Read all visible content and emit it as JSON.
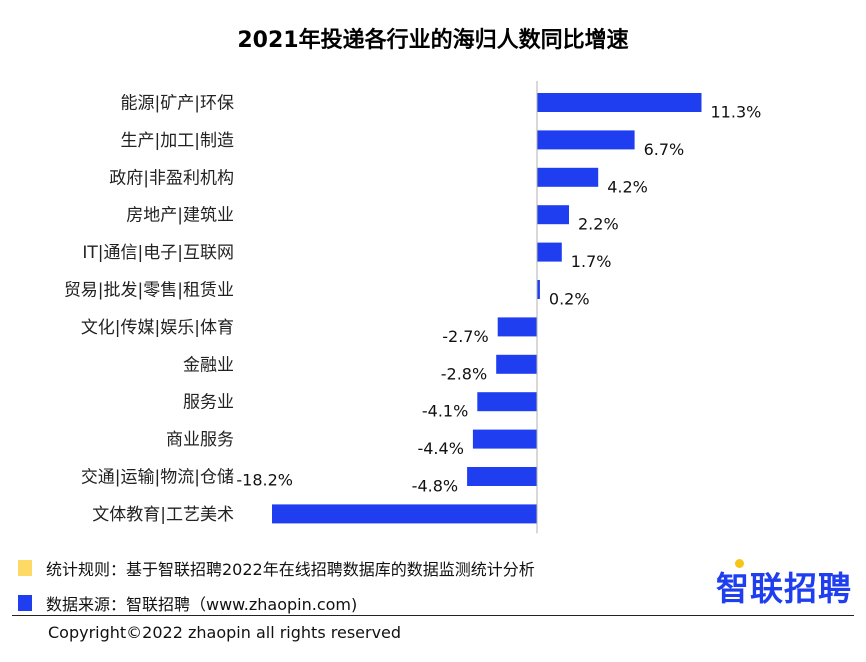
{
  "header": {
    "title": "2021年投递各行业的海归人数同比增速"
  },
  "chart_data": {
    "type": "bar",
    "orientation": "horizontal",
    "title": "2021年投递各行业的海归人数同比增速",
    "categories": [
      "能源|矿产|环保",
      "生产|加工|制造",
      "政府|非盈利机构",
      "房地产|建筑业",
      "IT|通信|电子|互联网",
      "贸易|批发|零售|租赁业",
      "文化|传媒|娱乐|体育",
      "金融业",
      "服务业",
      "商业服务",
      "交通|运输|物流|仓储",
      "文体教育|工艺美术"
    ],
    "values": [
      11.3,
      6.7,
      4.2,
      2.2,
      1.7,
      0.2,
      -2.7,
      -2.8,
      -4.1,
      -4.4,
      -4.8,
      -18.2
    ],
    "value_labels": [
      "11.3%",
      "6.7%",
      "4.2%",
      "2.2%",
      "1.7%",
      "0.2%",
      "-2.7%",
      "-2.8%",
      "-4.1%",
      "-4.4%",
      "-4.8%",
      "-18.2%"
    ],
    "xlim": [
      -18.2,
      11.3
    ],
    "xlabel": "",
    "ylabel": "",
    "grid": false,
    "bar_color": "#1f3ef0"
  },
  "legend": {
    "items": [
      {
        "swatch_color": "#ffd966",
        "text": "统计规则：基于智联招聘2022年在线招聘数据库的数据监测统计分析"
      },
      {
        "swatch_color": "#1f3ef0",
        "text": "数据来源：智联招聘（www.zhaopin.com)"
      }
    ]
  },
  "brand": {
    "logo_text": "智联招聘",
    "logo_color": "#1f3ef0",
    "dot_color": "#f5c518"
  },
  "footer": {
    "copyright": "Copyright©2022 zhaopin all rights reserved"
  }
}
